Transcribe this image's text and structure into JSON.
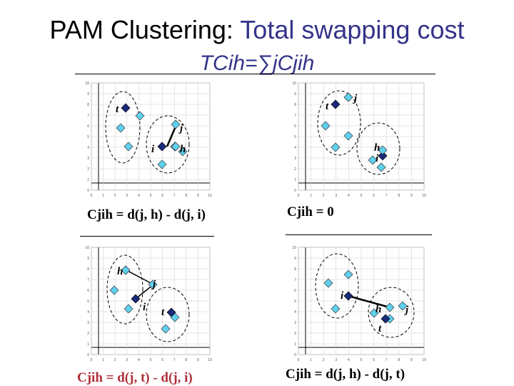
{
  "title": {
    "line1_prefix": "PAM Clustering:",
    "line1_accent": "Total swapping cost",
    "line2": "TCih=∑jCjih"
  },
  "colors": {
    "accent": "#33338a",
    "medoid": "#1a2a7a",
    "point": "#5fd0ee",
    "formula_red": "#b0303a"
  },
  "axis_ticks": {
    "y": [
      "0",
      "1",
      "2",
      "3",
      "4",
      "5",
      "6",
      "7",
      "8",
      "9",
      "10"
    ],
    "x": [
      "0",
      "1",
      "2",
      "3",
      "4",
      "5",
      "6",
      "7",
      "8",
      "9",
      "10"
    ]
  },
  "panels": [
    {
      "formula": "Cjih = d(j, h) - d(j, i)",
      "labels": {
        "t": "t",
        "i": "i",
        "j": "j",
        "h": "h"
      }
    },
    {
      "formula": "Cjih = 0",
      "labels": {
        "t": "t",
        "j": "j",
        "h": "h",
        "i": "i"
      }
    },
    {
      "formula": "Cjih = d(j, t) - d(j, i)",
      "labels": {
        "h": "h",
        "j": "j",
        "i": "i",
        "t": "t"
      }
    },
    {
      "formula": "Cjih = d(j, h) - d(j, t)",
      "labels": {
        "i": "i",
        "h": "h",
        "j": "j",
        "t": "t"
      }
    }
  ]
}
